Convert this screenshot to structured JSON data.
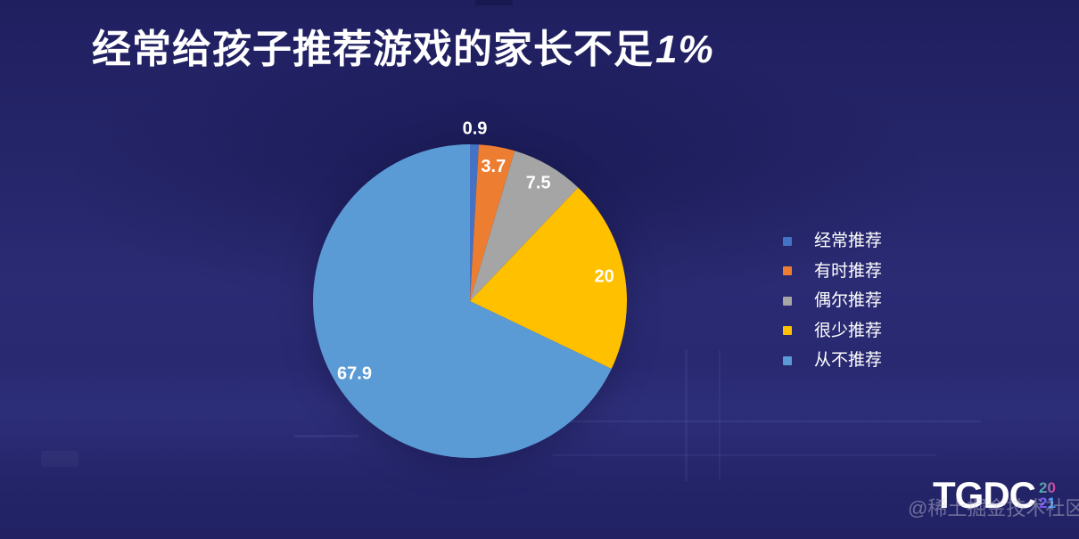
{
  "slide": {
    "title_main": "经常给孩子推荐游戏的家长不足",
    "title_highlight": "1%"
  },
  "chart_data": {
    "type": "pie",
    "title": "经常给孩子推荐游戏的家长不足1%",
    "labels": [
      "经常推荐",
      "有时推荐",
      "偶尔推荐",
      "很少推荐",
      "从不推荐"
    ],
    "values": [
      0.9,
      3.7,
      7.5,
      20,
      67.9
    ],
    "value_labels": [
      "0.9",
      "3.7",
      "7.5",
      "20",
      "67.9"
    ],
    "colors": [
      "#4472C4",
      "#ED7D31",
      "#A5A5A5",
      "#FFC000",
      "#5B9BD5"
    ],
    "start_angle_deg": 0,
    "direction": "clockwise",
    "legend_position": "right",
    "data_label_color": "#FFFFFF"
  },
  "logo": {
    "text": "TGDC",
    "year_top": "20",
    "year_bottom": "21"
  },
  "watermark": "@稀土掘金技术社区",
  "theme": {
    "background": "#23236B",
    "title_color": "#FFFFFF"
  }
}
